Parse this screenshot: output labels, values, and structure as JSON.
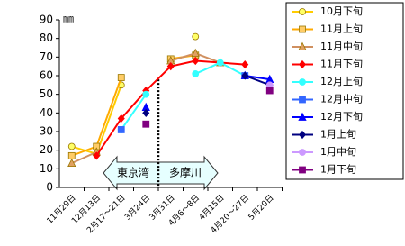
{
  "chart_data": {
    "type": "line",
    "y_unit": "㎜",
    "categories": [
      "11月29日",
      "12月13日",
      "2月17～21日",
      "3月24日",
      "3月31日",
      "4月6～8日",
      "4月15日",
      "4月20～27日",
      "5月20日"
    ],
    "ylim": [
      0,
      90
    ],
    "yticks": [
      0,
      10,
      20,
      30,
      40,
      50,
      60,
      70,
      80,
      90
    ],
    "grid": false,
    "legend": "right",
    "annotations": [
      "東京湾",
      "多摩川"
    ],
    "series": [
      {
        "name": "10月下旬",
        "color": "#FFCC00",
        "marker_fill": "#FFFF66",
        "marker": "circle",
        "values": [
          22,
          18,
          55,
          null,
          null,
          81,
          null,
          null,
          null
        ]
      },
      {
        "name": "11月上旬",
        "color": "#FFAA00",
        "marker_fill": "#FFCC66",
        "marker": "square",
        "values": [
          17,
          22,
          59,
          null,
          69,
          71,
          null,
          null,
          null
        ]
      },
      {
        "name": "11月中旬",
        "color": "#D09060",
        "marker_fill": "#E0A060",
        "marker": "triangle",
        "values": [
          13,
          19,
          null,
          null,
          68,
          72,
          67,
          null,
          null
        ]
      },
      {
        "name": "11月下旬",
        "color": "#FF0000",
        "marker_fill": "#FF0000",
        "marker": "diamond",
        "values": [
          null,
          17,
          37,
          52,
          65,
          68,
          67,
          66,
          null
        ]
      },
      {
        "name": "12月上旬",
        "color": "#33FFFF",
        "marker_fill": "#33FFFF",
        "marker": "circle",
        "values": [
          null,
          null,
          31,
          50,
          null,
          61,
          67,
          60,
          null
        ]
      },
      {
        "name": "12月中旬",
        "color": "#3366FF",
        "marker_fill": "#3366FF",
        "marker": "square",
        "values": [
          null,
          null,
          31,
          null,
          null,
          null,
          null,
          60,
          null
        ]
      },
      {
        "name": "12月下旬",
        "color": "#0000FF",
        "marker_fill": "#0000FF",
        "marker": "triangle",
        "values": [
          null,
          null,
          null,
          43,
          null,
          null,
          null,
          60,
          58
        ]
      },
      {
        "name": "1月上旬",
        "color": "#000080",
        "marker_fill": "#000080",
        "marker": "diamond",
        "values": [
          null,
          null,
          null,
          40,
          null,
          null,
          null,
          60,
          55
        ]
      },
      {
        "name": "1月中旬",
        "color": "#CC99FF",
        "marker_fill": "#CC99FF",
        "marker": "circle",
        "values": [
          null,
          null,
          null,
          null,
          null,
          null,
          null,
          null,
          55
        ]
      },
      {
        "name": "1月下旬",
        "color": "#800080",
        "marker_fill": "#800080",
        "marker": "square",
        "values": [
          null,
          null,
          null,
          34,
          null,
          null,
          null,
          null,
          52
        ]
      }
    ]
  }
}
